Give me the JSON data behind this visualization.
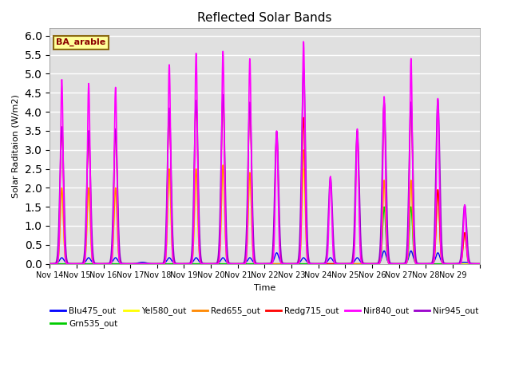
{
  "title": "Reflected Solar Bands",
  "xlabel": "Time",
  "ylabel": "Solar Raditaion (W/m2)",
  "annotation": "BA_arable",
  "ylim": [
    0,
    6.2
  ],
  "yticks": [
    0.0,
    0.5,
    1.0,
    1.5,
    2.0,
    2.5,
    3.0,
    3.5,
    4.0,
    4.5,
    5.0,
    5.5,
    6.0
  ],
  "xtick_labels": [
    "Nov 14",
    "Nov 15",
    "Nov 16",
    "Nov 17",
    "Nov 18",
    "Nov 19",
    "Nov 20",
    "Nov 21",
    "Nov 22",
    "Nov 23",
    "Nov 24",
    "Nov 25",
    "Nov 26",
    "Nov 27",
    "Nov 28",
    "Nov 29",
    ""
  ],
  "series_colors": {
    "Blu475_out": "#0000ff",
    "Grn535_out": "#00cc00",
    "Yel580_out": "#ffff00",
    "Red655_out": "#ff8800",
    "Redg715_out": "#ff0000",
    "Nir840_out": "#ff00ff",
    "Nir945_out": "#9900cc"
  },
  "background_color": "#e0e0e0",
  "grid_color": "#ffffff",
  "nir840_peaks": [
    4.85,
    4.75,
    4.65,
    0.0,
    5.25,
    5.55,
    5.6,
    5.4,
    3.5,
    5.85,
    2.3,
    3.55,
    4.4,
    5.4,
    4.35,
    1.55
  ],
  "nir945_peaks": [
    3.6,
    3.5,
    3.55,
    0.0,
    4.1,
    4.3,
    4.45,
    4.25,
    3.48,
    5.15,
    2.28,
    3.5,
    4.25,
    4.25,
    4.32,
    1.55
  ],
  "redg715_peaks": [
    3.6,
    3.5,
    3.55,
    0.0,
    4.1,
    4.3,
    4.45,
    4.25,
    3.48,
    3.85,
    0.0,
    3.5,
    4.25,
    4.25,
    1.95,
    0.82
  ],
  "red655_peaks": [
    2.0,
    2.0,
    2.0,
    0.0,
    2.5,
    2.5,
    2.6,
    2.4,
    0.0,
    3.0,
    0.0,
    0.0,
    2.2,
    2.2,
    1.95,
    0.82
  ],
  "yel580_peaks": [
    2.0,
    2.0,
    2.0,
    0.0,
    2.5,
    2.5,
    2.6,
    2.4,
    0.0,
    2.5,
    0.0,
    0.0,
    2.2,
    2.2,
    1.95,
    0.0
  ],
  "grn535_peaks": [
    0.0,
    0.0,
    0.0,
    0.0,
    0.0,
    0.0,
    0.0,
    0.0,
    0.0,
    0.0,
    0.0,
    0.0,
    1.5,
    1.5,
    0.0,
    0.0
  ],
  "blu475_peaks": [
    0.12,
    0.12,
    0.12,
    0.0,
    0.12,
    0.12,
    0.12,
    0.12,
    0.25,
    0.12,
    0.12,
    0.12,
    0.3,
    0.3,
    0.25,
    0.0
  ]
}
